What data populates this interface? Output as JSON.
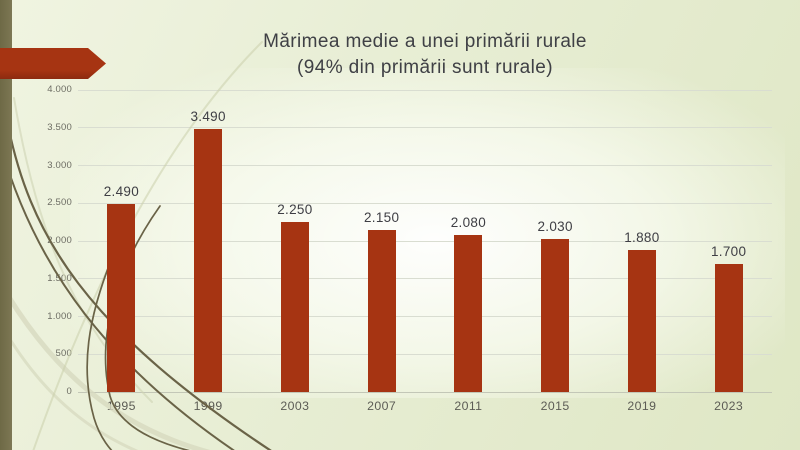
{
  "slide": {
    "title_line1": "Mărimea medie a unei primării rurale",
    "title_line2": "(94% din primării sunt rurale)"
  },
  "colors": {
    "bar": "#A63412",
    "accent_arrow": "#A63412",
    "left_stripe": "#78734F",
    "background_edge": "#DFE7C5",
    "background_light": "#F0F4E1",
    "plot_center": "#FDFEF9",
    "gridline": "#D9DDD1",
    "title_text": "#3F4045",
    "axis_text": "#5C5C55",
    "swoosh_dark": "#6A6347",
    "swoosh_light": "#D7DABF"
  },
  "chart_data": {
    "type": "bar",
    "title": "Mărimea medie a unei primării rurale (94% din primării sunt rurale)",
    "categories": [
      "1995",
      "1999",
      "2003",
      "2007",
      "2011",
      "2015",
      "2019",
      "2023"
    ],
    "values": [
      2490,
      3490,
      2250,
      2150,
      2080,
      2030,
      1880,
      1700
    ],
    "value_labels": [
      "2.490",
      "3.490",
      "2.250",
      "2.150",
      "2.080",
      "2.030",
      "1.880",
      "1.700"
    ],
    "xlabel": "",
    "ylabel": "",
    "ylim": [
      0,
      4000
    ],
    "ytick_step": 500,
    "ytick_labels": [
      "4.000",
      "3.500",
      "3.000",
      "2.500",
      "2.000",
      "1.500",
      "1.000",
      "500",
      "0"
    ],
    "grid": true,
    "legend": false,
    "bar_color": "#A63412"
  }
}
